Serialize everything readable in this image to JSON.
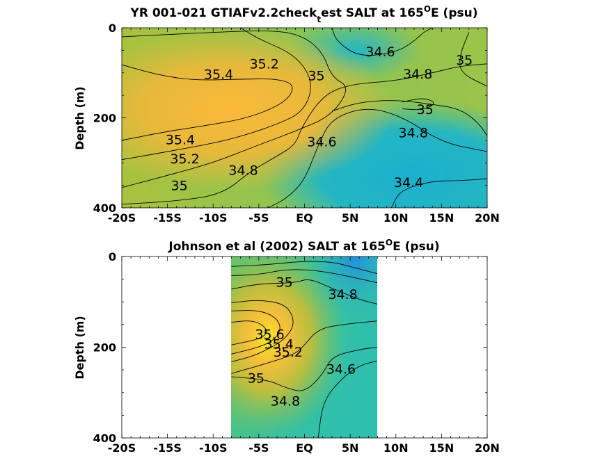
{
  "chart_data": [
    {
      "type": "heatmap",
      "title": "YR 001-021 GTIAFv2.2check",
      "title_sub": "t",
      "title_rest": "est SALT at 165",
      "title_sup": "O",
      "title_end": "E (psu)",
      "ylabel": "Depth (m)",
      "x_ticks": [
        "-20S",
        "-15S",
        "-10S",
        "-5S",
        "EQ",
        "5N",
        "10N",
        "15N",
        "20N"
      ],
      "x_tick_values": [
        -20,
        -15,
        -10,
        -5,
        0,
        5,
        10,
        15,
        20
      ],
      "y_ticks": [
        "0",
        "200",
        "400"
      ],
      "y_tick_values": [
        0,
        200,
        400
      ],
      "xlim": [
        -20,
        20
      ],
      "ylim": [
        0,
        400
      ],
      "y_reversed": true,
      "data_extent_x": [
        -20,
        20
      ],
      "contour_labels": [
        {
          "text": "34.6",
          "x": 8.3,
          "y": 55
        },
        {
          "text": "35.2",
          "x": -4.4,
          "y": 82
        },
        {
          "text": "35.4",
          "x": -9.4,
          "y": 105
        },
        {
          "text": "35",
          "x": 1.3,
          "y": 108
        },
        {
          "text": "34.8",
          "x": 12.4,
          "y": 104
        },
        {
          "text": "35",
          "x": 17.5,
          "y": 73
        },
        {
          "text": "35",
          "x": 13.2,
          "y": 183
        },
        {
          "text": "34.8",
          "x": 11.9,
          "y": 235
        },
        {
          "text": "35.4",
          "x": -13.6,
          "y": 250
        },
        {
          "text": "34.6",
          "x": 1.9,
          "y": 255
        },
        {
          "text": "35.2",
          "x": -13.1,
          "y": 293
        },
        {
          "text": "34.8",
          "x": -6.7,
          "y": 318
        },
        {
          "text": "35",
          "x": -13.7,
          "y": 352
        },
        {
          "text": "34.4",
          "x": 11.4,
          "y": 345
        }
      ],
      "contours": [
        {
          "level": 35.4,
          "points": [
            [
              -20,
              82
            ],
            [
              -16,
              105
            ],
            [
              -12,
              117
            ],
            [
              -7,
              114
            ],
            [
              -3,
              113
            ],
            [
              -1,
              127
            ],
            [
              -2,
              165
            ],
            [
              -6,
              200
            ],
            [
              -11,
              218
            ],
            [
              -15,
              230
            ],
            [
              -20,
              250
            ]
          ]
        },
        {
          "level": 35.2,
          "points": [
            [
              -7,
              0
            ],
            [
              -5,
              25
            ],
            [
              -1,
              60
            ],
            [
              1,
              120
            ],
            [
              0,
              185
            ],
            [
              -3,
              215
            ],
            [
              -8,
              248
            ],
            [
              -13,
              268
            ],
            [
              -20,
              293
            ]
          ]
        },
        {
          "level": 35,
          "points": [
            [
              -20,
              20
            ],
            [
              -10,
              10
            ],
            [
              -3,
              5
            ],
            [
              0,
              20
            ],
            [
              2,
              55
            ],
            [
              3,
              110
            ],
            [
              5,
              132
            ],
            [
              3,
              195
            ],
            [
              -1,
              230
            ],
            [
              -5,
              260
            ],
            [
              -10,
              300
            ],
            [
              -15,
              328
            ],
            [
              -20,
              355
            ]
          ]
        },
        {
          "level": 35,
          "points": [
            [
              18,
              10
            ],
            [
              17,
              60
            ],
            [
              17,
              100
            ],
            [
              20,
              130
            ]
          ]
        },
        {
          "level": 35,
          "points": [
            [
              10.7,
              165
            ],
            [
              13,
              155
            ],
            [
              14.5,
              167
            ],
            [
              13,
              183
            ],
            [
              10.7,
              180
            ]
          ]
        },
        {
          "level": 34.8,
          "points": [
            [
              3,
              185
            ],
            [
              6,
              165
            ],
            [
              10,
              160
            ],
            [
              14,
              170
            ],
            [
              17,
              180
            ],
            [
              19,
              210
            ],
            [
              20,
              240
            ]
          ]
        },
        {
          "level": 34.8,
          "points": [
            [
              -20,
              392
            ],
            [
              -14,
              385
            ],
            [
              -9,
              370
            ],
            [
              -6,
              320
            ],
            [
              -3,
              285
            ],
            [
              -1,
              260
            ],
            [
              -0.3,
              220
            ],
            [
              2,
              150
            ],
            [
              5,
              125
            ],
            [
              10,
              118
            ],
            [
              14,
              100
            ],
            [
              17,
              85
            ],
            [
              20,
              80
            ]
          ]
        },
        {
          "level": 34.6,
          "points": [
            [
              3,
              0
            ],
            [
              3.5,
              30
            ],
            [
              6,
              65
            ],
            [
              10,
              55
            ],
            [
              12,
              30
            ],
            [
              13,
              10
            ],
            [
              14,
              0
            ]
          ]
        },
        {
          "level": 34.6,
          "points": [
            [
              -4,
              400
            ],
            [
              -2,
              380
            ],
            [
              0,
              340
            ],
            [
              1.5,
              260
            ],
            [
              3,
              200
            ],
            [
              7,
              175
            ],
            [
              11,
              200
            ],
            [
              15,
              255
            ],
            [
              20,
              275
            ]
          ]
        },
        {
          "level": 34.4,
          "points": [
            [
              9.5,
              400
            ],
            [
              10.5,
              360
            ],
            [
              14,
              340
            ],
            [
              17,
              340
            ],
            [
              20,
              335
            ]
          ]
        }
      ]
    },
    {
      "type": "heatmap",
      "title": "Johnson et al (2002) SALT at 165",
      "title_sup": "O",
      "title_end": "E (psu)",
      "ylabel": "Depth (m)",
      "x_ticks": [
        "-20S",
        "-15S",
        "-10S",
        "-5S",
        "EQ",
        "5N",
        "10N",
        "15N",
        "20N"
      ],
      "x_tick_values": [
        -20,
        -15,
        -10,
        -5,
        0,
        5,
        10,
        15,
        20
      ],
      "y_ticks": [
        "0",
        "200",
        "400"
      ],
      "y_tick_values": [
        0,
        200,
        400
      ],
      "xlim": [
        -20,
        20
      ],
      "ylim": [
        0,
        400
      ],
      "y_reversed": true,
      "data_extent_x": [
        -8,
        8
      ],
      "contour_labels": [
        {
          "text": "35",
          "x": -2.2,
          "y": 58
        },
        {
          "text": "34.8",
          "x": 4.2,
          "y": 85
        },
        {
          "text": "35.6",
          "x": -3.8,
          "y": 173
        },
        {
          "text": "35.4",
          "x": -2.8,
          "y": 195
        },
        {
          "text": "35.2",
          "x": -1.8,
          "y": 212
        },
        {
          "text": "35",
          "x": -5.3,
          "y": 270
        },
        {
          "text": "34.6",
          "x": 4,
          "y": 250
        },
        {
          "text": "34.8",
          "x": -2.1,
          "y": 320
        }
      ],
      "contours": [
        {
          "level": 34.6,
          "points": [
            [
              -8,
              22
            ],
            [
              -4,
              18
            ],
            [
              0,
              10
            ],
            [
              3,
              12
            ],
            [
              5,
              22
            ],
            [
              8,
              38
            ]
          ]
        },
        {
          "level": 34.8,
          "points": [
            [
              -8,
              42
            ],
            [
              -5,
              40
            ],
            [
              -2,
              28
            ],
            [
              1,
              30
            ],
            [
              4,
              40
            ],
            [
              8,
              58
            ]
          ]
        },
        {
          "level": 35,
          "points": [
            [
              -8,
              72
            ],
            [
              -5,
              60
            ],
            [
              -1,
              58
            ],
            [
              0.5,
              48
            ],
            [
              3,
              70
            ],
            [
              6,
              95
            ],
            [
              8,
              105
            ]
          ]
        },
        {
          "level": 35.2,
          "points": [
            [
              -8,
              102
            ],
            [
              -5,
              95
            ],
            [
              -2,
              105
            ],
            [
              -1,
              145
            ],
            [
              -2,
              180
            ],
            [
              -4,
              205
            ],
            [
              -6,
              222
            ],
            [
              -8,
              232
            ]
          ]
        },
        {
          "level": 35.4,
          "points": [
            [
              -8,
              120
            ],
            [
              -5,
              118
            ],
            [
              -3,
              135
            ],
            [
              -2.5,
              165
            ],
            [
              -4,
              195
            ],
            [
              -8,
              215
            ]
          ]
        },
        {
          "level": 35.6,
          "points": [
            [
              -8,
              145
            ],
            [
              -5.5,
              140
            ],
            [
              -4,
              160
            ],
            [
              -4.5,
              180
            ],
            [
              -8,
              195
            ]
          ]
        },
        {
          "level": 35,
          "points": [
            [
              -8,
              258
            ],
            [
              -4,
              235
            ],
            [
              -1,
              215
            ],
            [
              0,
              195
            ],
            [
              1.5,
              160
            ],
            [
              4,
              150
            ],
            [
              8,
              142
            ]
          ]
        },
        {
          "level": 34.8,
          "points": [
            [
              -8,
              265
            ],
            [
              -4,
              272
            ],
            [
              -2,
              290
            ],
            [
              0,
              300
            ],
            [
              2,
              260
            ],
            [
              3,
              220
            ],
            [
              6,
              205
            ],
            [
              8,
              200
            ]
          ]
        },
        {
          "level": 34.6,
          "points": [
            [
              1.5,
              400
            ],
            [
              2,
              320
            ],
            [
              4,
              270
            ],
            [
              6,
              240
            ],
            [
              8,
              230
            ]
          ]
        }
      ]
    }
  ]
}
